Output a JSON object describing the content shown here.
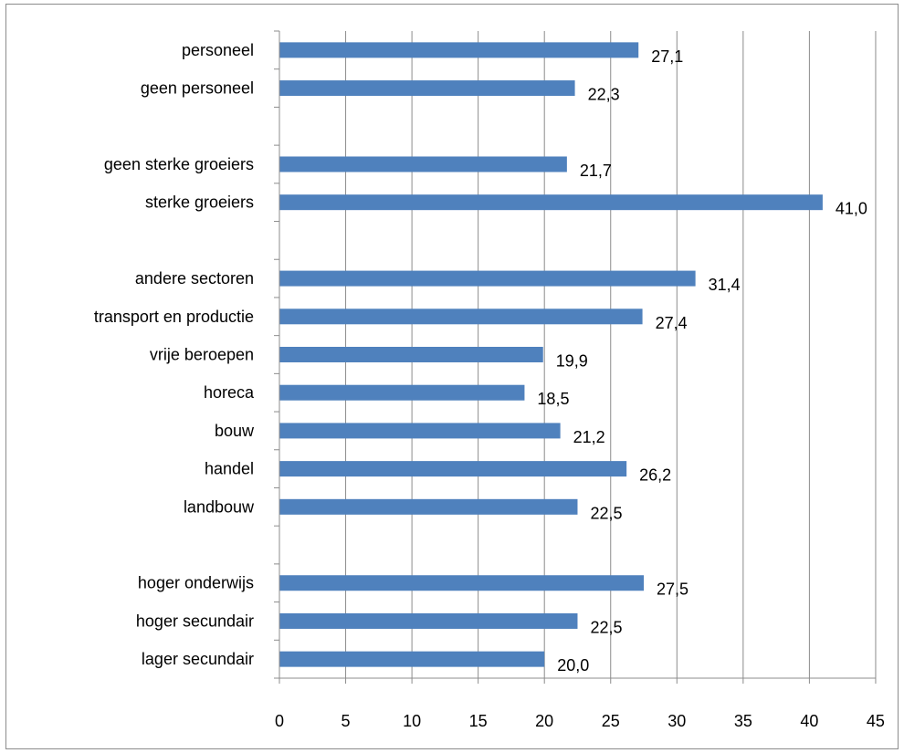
{
  "chart_data": {
    "type": "bar",
    "orientation": "horizontal",
    "title": "",
    "xlabel": "",
    "ylabel": "",
    "xlim": [
      0,
      45
    ],
    "xticks": [
      0,
      5,
      10,
      15,
      20,
      25,
      30,
      35,
      40,
      45
    ],
    "grid": "vertical",
    "legend": "none",
    "bar_color": "#4F81BD",
    "categories": [
      "personeel",
      "geen personeel",
      "",
      "geen sterke groeiers",
      "sterke groeiers",
      "",
      "andere sectoren",
      "transport en productie",
      "vrije beroepen",
      "horeca",
      "bouw",
      "handel",
      "landbouw",
      "",
      "hoger onderwijs",
      "hoger secundair",
      "lager secundair"
    ],
    "values": [
      27.1,
      22.3,
      null,
      21.7,
      41.0,
      null,
      31.4,
      27.4,
      19.9,
      18.5,
      21.2,
      26.2,
      22.5,
      null,
      27.5,
      22.5,
      20.0
    ],
    "value_labels": [
      "27,1",
      "22,3",
      "",
      "21,7",
      "41,0",
      "",
      "31,4",
      "27,4",
      "19,9",
      "18,5",
      "21,2",
      "26,2",
      "22,5",
      "",
      "27,5",
      "22,5",
      "20,0"
    ]
  }
}
